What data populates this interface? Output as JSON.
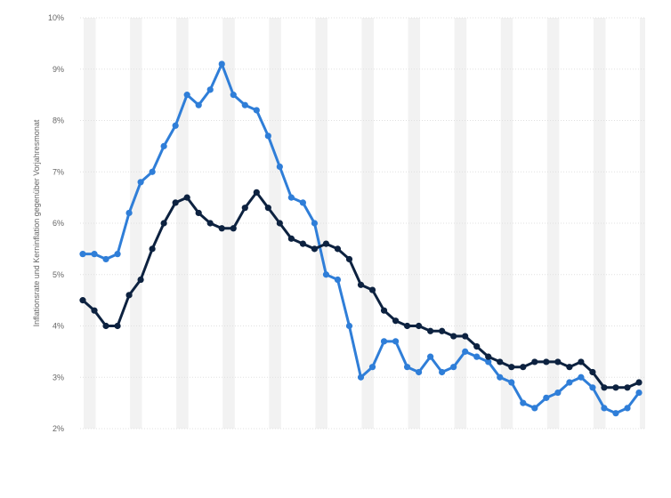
{
  "chart_data": {
    "type": "line",
    "ylabel": "Inflationsrate und Kerninflation gegenüber Vorjahresmonat",
    "xlabel": "",
    "ylim": [
      2,
      10
    ],
    "yticks": [
      {
        "value": 2,
        "label": "2%"
      },
      {
        "value": 3,
        "label": "3%"
      },
      {
        "value": 4,
        "label": "4%"
      },
      {
        "value": 5,
        "label": "5%"
      },
      {
        "value": 6,
        "label": "6%"
      },
      {
        "value": 7,
        "label": "7%"
      },
      {
        "value": 8,
        "label": "8%"
      },
      {
        "value": 9,
        "label": "9%"
      },
      {
        "value": 10,
        "label": "10%"
      }
    ],
    "grid": true,
    "legend": "none",
    "series": [
      {
        "color": "#2f7ed8",
        "values": [
          5.4,
          5.4,
          5.3,
          5.4,
          6.2,
          6.8,
          7.0,
          7.5,
          7.9,
          8.5,
          8.3,
          8.6,
          9.1,
          8.5,
          8.3,
          8.2,
          7.7,
          7.1,
          6.5,
          6.4,
          6.0,
          5.0,
          4.9,
          4.0,
          3.0,
          3.2,
          3.7,
          3.7,
          3.2,
          3.1,
          3.4,
          3.1,
          3.2,
          3.5,
          3.4,
          3.3,
          3.0,
          2.9,
          2.5,
          2.4,
          2.6,
          2.7,
          2.9,
          3.0,
          2.8,
          2.4,
          2.3,
          2.4,
          2.7
        ]
      },
      {
        "color": "#0d2240",
        "values": [
          4.5,
          4.3,
          4.0,
          4.0,
          4.6,
          4.9,
          5.5,
          6.0,
          6.4,
          6.5,
          6.2,
          6.0,
          5.9,
          5.9,
          6.3,
          6.6,
          6.3,
          6.0,
          5.7,
          5.6,
          5.5,
          5.6,
          5.5,
          5.3,
          4.8,
          4.7,
          4.3,
          4.1,
          4.0,
          4.0,
          3.9,
          3.9,
          3.8,
          3.8,
          3.6,
          3.4,
          3.3,
          3.2,
          3.2,
          3.3,
          3.3,
          3.3,
          3.2,
          3.3,
          3.1,
          2.8,
          2.8,
          2.8,
          2.9
        ]
      }
    ],
    "colors": {
      "band": "#f2f2f2",
      "gridline": "#e0e0e0",
      "text": "#666666"
    }
  }
}
